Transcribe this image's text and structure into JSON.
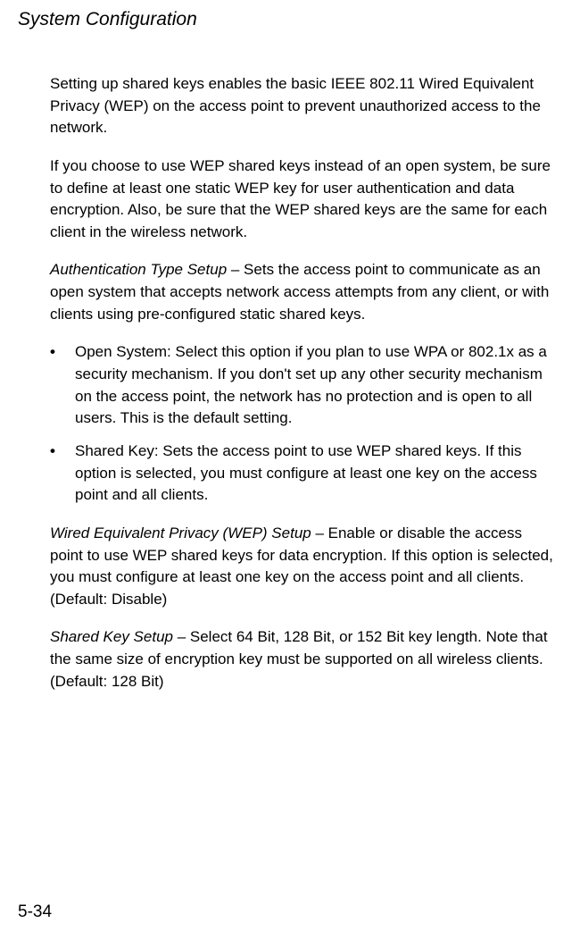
{
  "header": {
    "title": "System Configuration"
  },
  "content": {
    "para1": "Setting up shared keys enables the basic IEEE 802.11 Wired Equivalent Privacy (WEP) on the access point to prevent unauthorized access to the network.",
    "para2": "If you choose to use WEP shared keys instead of an open system, be sure to define at least one static WEP key for user authentication and data encryption. Also, be sure that the WEP shared keys are the same for each client in the wireless network.",
    "authType": {
      "label": "Authentication Type Setup",
      "text": " – Sets the access point to communicate as an open system that accepts network access attempts from any client, or with clients using pre-configured static shared keys."
    },
    "bullets": [
      "Open System: Select this option if you plan to use WPA or 802.1x as a security mechanism. If you don't set up any other security mechanism on the access point, the network has no protection and is open to all users. This is the default setting.",
      "Shared Key: Sets the access point to use WEP shared keys. If this option is selected, you must configure at least one key on the access point and all clients."
    ],
    "wepSetup": {
      "label": "Wired Equivalent Privacy (WEP) Setup",
      "text": " – Enable or disable the access point to use WEP shared keys for data encryption. If this option is selected, you must configure at least one key on the access point and all clients. (Default: Disable)"
    },
    "sharedKeySetup": {
      "label": "Shared Key Setup",
      "text": " – Select 64 Bit, 128 Bit, or 152 Bit key length. Note that the same size of encryption key must be supported on all wireless clients. (Default: 128 Bit)"
    }
  },
  "footer": {
    "pageNumber": "5-34"
  }
}
